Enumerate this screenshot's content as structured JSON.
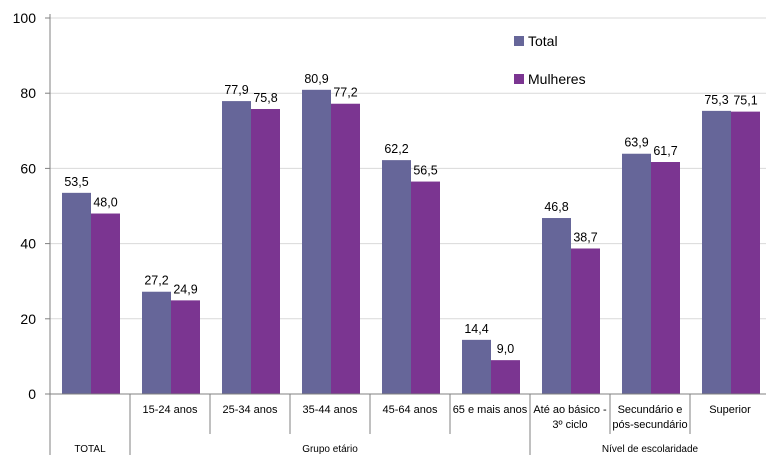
{
  "chart_data": {
    "type": "bar",
    "categories": [
      "TOTAL",
      "15-24 anos",
      "25-34 anos",
      "35-44 anos",
      "45-64 anos",
      "65 e mais anos",
      "Até ao básico - 3º ciclo",
      "Secundário e pós-secundário",
      "Superior"
    ],
    "category_lines": [
      [],
      [
        "15-24 anos"
      ],
      [
        "25-34 anos"
      ],
      [
        "35-44 anos"
      ],
      [
        "45-64 anos"
      ],
      [
        "65 e mais anos"
      ],
      [
        "Até ao básico -",
        "3º ciclo"
      ],
      [
        "Secundário e",
        "pós-secundário"
      ],
      [
        "Superior"
      ]
    ],
    "groups": [
      {
        "label": "TOTAL",
        "categories": [
          "TOTAL"
        ]
      },
      {
        "label": "Grupo etário",
        "categories": [
          "15-24 anos",
          "25-34 anos",
          "35-44 anos",
          "45-64 anos",
          "65 e mais anos"
        ]
      },
      {
        "label": "Nível de escolaridade",
        "categories": [
          "Até ao básico - 3º ciclo",
          "Secundário e pós-secundário",
          "Superior"
        ]
      }
    ],
    "series": [
      {
        "name": "Total",
        "color": "#666699",
        "values": [
          53.5,
          27.2,
          77.9,
          80.9,
          62.2,
          14.4,
          46.8,
          63.9,
          75.3
        ],
        "labels": [
          "53,5",
          "27,2",
          "77,9",
          "80,9",
          "62,2",
          "14,4",
          "46,8",
          "63,9",
          "75,3"
        ]
      },
      {
        "name": "Mulheres",
        "color": "#7B3591",
        "values": [
          48.0,
          24.9,
          75.8,
          77.2,
          56.5,
          9.0,
          38.7,
          61.7,
          75.1
        ],
        "labels": [
          "48,0",
          "24,9",
          "75,8",
          "77,2",
          "56,5",
          "9,0",
          "38,7",
          "61,7",
          "75,1"
        ]
      }
    ],
    "yticks": [
      "0",
      "20",
      "40",
      "60",
      "80",
      "100"
    ],
    "ylim": [
      0,
      100
    ],
    "grid": true,
    "legend_position": "top-right"
  }
}
